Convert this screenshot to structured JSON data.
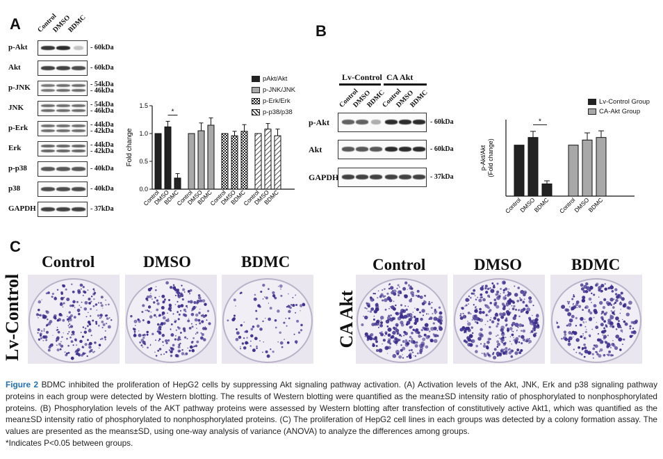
{
  "panels": {
    "a": "A",
    "b": "B",
    "c": "C"
  },
  "panel_a": {
    "columns": [
      "Control",
      "DMSO",
      "BDMC"
    ],
    "rows": [
      {
        "label": "p-Akt",
        "kda": [
          "- 60kDa"
        ],
        "intensity": [
          0.9,
          0.95,
          0.25
        ]
      },
      {
        "label": "Akt",
        "kda": [
          "- 60kDa"
        ],
        "intensity": [
          0.85,
          0.85,
          0.8
        ]
      },
      {
        "label": "p-JNK",
        "kda": [
          "- 54kDa",
          "- 46kDa"
        ],
        "intensity": [
          0.6,
          0.65,
          0.65
        ]
      },
      {
        "label": "JNK",
        "kda": [
          "- 54kDa",
          "- 46kDa"
        ],
        "intensity": [
          0.65,
          0.65,
          0.65
        ]
      },
      {
        "label": "p-Erk",
        "kda": [
          "- 44kDa",
          "- 42kDa"
        ],
        "intensity": [
          0.65,
          0.65,
          0.65
        ]
      },
      {
        "label": "Erk",
        "kda": [
          "- 44kDa",
          "- 42kDa"
        ],
        "intensity": [
          0.7,
          0.7,
          0.7
        ]
      },
      {
        "label": "p-p38",
        "kda": [
          "- 40kDa"
        ],
        "intensity": [
          0.75,
          0.75,
          0.75
        ]
      },
      {
        "label": "p38",
        "kda": [
          "- 40kDa"
        ],
        "intensity": [
          0.8,
          0.8,
          0.8
        ]
      },
      {
        "label": "GAPDH",
        "kda": [
          "- 37kDa"
        ],
        "intensity": [
          0.85,
          0.85,
          0.85
        ]
      }
    ]
  },
  "panel_b": {
    "groups": [
      "Lv-Control",
      "CA Akt"
    ],
    "columns": [
      "Control",
      "DMSO",
      "BDMC",
      "Control",
      "DMSO",
      "BDMC"
    ],
    "rows": [
      {
        "label": "p-Akt",
        "kda": "- 60kDa",
        "intensity": [
          0.7,
          0.7,
          0.35,
          0.95,
          0.95,
          0.95
        ]
      },
      {
        "label": "Akt",
        "kda": "- 60kDa",
        "intensity": [
          0.75,
          0.75,
          0.75,
          0.95,
          0.95,
          0.95
        ]
      },
      {
        "label": "GAPDH",
        "kda": "- 37kDa",
        "intensity": [
          0.85,
          0.85,
          0.85,
          0.85,
          0.85,
          0.85
        ]
      }
    ]
  },
  "chart_data": [
    {
      "type": "bar",
      "ylabel": "Fold change",
      "ylim": [
        0,
        1.5
      ],
      "yticks": [
        0.0,
        0.5,
        1.0,
        1.5
      ],
      "ytick_labels": [
        "0.0",
        "0.5",
        "1.0",
        "1.5"
      ],
      "categories": [
        "Control",
        "DMSO",
        "BDMC"
      ],
      "series": [
        {
          "name": "pAkt/Akt",
          "values": [
            1.0,
            1.12,
            0.2
          ],
          "errors": [
            0.0,
            0.1,
            0.08
          ],
          "fill": "#222222",
          "pattern": "solid"
        },
        {
          "name": "p-JNK/JNK",
          "values": [
            1.0,
            1.05,
            1.15
          ],
          "errors": [
            0.0,
            0.14,
            0.13
          ],
          "fill": "#a8a8a8",
          "pattern": "solid"
        },
        {
          "name": "p-Erk/Erk",
          "values": [
            1.0,
            0.96,
            1.04
          ],
          "errors": [
            0.0,
            0.08,
            0.12
          ],
          "fill": "#ffffff",
          "pattern": "checker"
        },
        {
          "name": "p-p38/p38",
          "values": [
            1.0,
            1.08,
            0.96
          ],
          "errors": [
            0.0,
            0.1,
            0.12
          ],
          "fill": "#ffffff",
          "pattern": "hatch"
        }
      ],
      "annotations": [
        {
          "text": "*",
          "between": [
            "DMSO",
            "BDMC"
          ],
          "series": "pAkt/Akt"
        }
      ],
      "legend": "right"
    },
    {
      "type": "bar",
      "ylabel": "p-Akt/Akt\n(Fold change)",
      "ylim": [
        0,
        1.5
      ],
      "categories": [
        "Control",
        "DMSO",
        "BDMC"
      ],
      "series": [
        {
          "name": "Lv-Control Group",
          "values": [
            1.0,
            1.15,
            0.24
          ],
          "errors": [
            0.0,
            0.12,
            0.06
          ],
          "fill": "#222222"
        },
        {
          "name": "CA-Akt Group",
          "values": [
            1.0,
            1.1,
            1.15
          ],
          "errors": [
            0.0,
            0.14,
            0.13
          ],
          "fill": "#a8a8a8"
        }
      ],
      "annotations": [
        {
          "text": "*",
          "between": [
            "DMSO",
            "BDMC"
          ],
          "series": "Lv-Control Group"
        }
      ],
      "legend": "top-right"
    }
  ],
  "panel_c": {
    "columns": [
      "Control",
      "DMSO",
      "BDMC"
    ],
    "row_left": "Lv-Control",
    "row_right": "CA Akt",
    "colony_density": [
      0.55,
      0.6,
      0.25,
      0.75,
      0.8,
      0.6
    ],
    "stain_color": "#3a2d8c"
  },
  "caption": {
    "fig_label": "Figure 2",
    "text": " BDMC inhibited the proliferation of HepG2 cells by suppressing Akt signaling pathway activation. (A) Activation levels of the Akt, JNK, Erk and p38 signaling pathway proteins in each group were detected by Western blotting. The results of Western blotting were quantified as the mean±SD intensity ratio of phosphorylated to nonphosphorylated proteins. (B) Phosphorylation levels of the AKT pathway proteins were assessed by Western blotting after transfection of constitutively active Akt1, which was quantified as the mean±SD intensity ratio of phosphorylated to nonphosphorylated proteins. (C) The proliferation of HepG2 cell lines in each groups was detected by a colony formation assay. The values are presented as the means±SD, using one-way analysis of variance (ANOVA) to analyze the differences among groups.",
    "footnote": "*Indicates P<0.05 between groups."
  }
}
